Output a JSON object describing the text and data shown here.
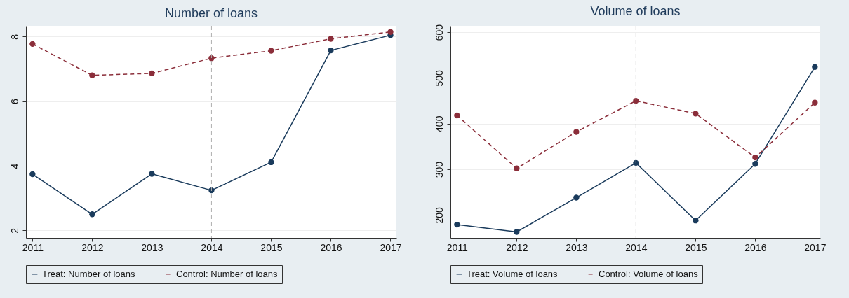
{
  "chart_data": [
    {
      "type": "line",
      "title": "Number of loans",
      "x": [
        2011,
        2012,
        2013,
        2014,
        2015,
        2016,
        2017
      ],
      "xlim": [
        2010.89,
        2017.1
      ],
      "xticks": [
        2011,
        2012,
        2013,
        2014,
        2015,
        2016,
        2017
      ],
      "ylim": [
        1.77,
        8.33
      ],
      "yticks": [
        2,
        4,
        6,
        8
      ],
      "grid": "y",
      "legend": "bottom",
      "marker": "circle",
      "ref_lines": [
        {
          "axis": "x",
          "value": 2014,
          "color": "#b0b0b0",
          "line_style": "dashed"
        }
      ],
      "series": [
        {
          "name": "Treat: Number of loans",
          "color": "#1a3b5c",
          "line_style": "solid",
          "values": [
            3.74,
            2.5,
            3.75,
            3.24,
            4.11,
            7.57,
            8.04
          ]
        },
        {
          "name": "Control: Number of loans",
          "color": "#8b2e3a",
          "line_style": "dashed",
          "values": [
            7.77,
            6.8,
            6.86,
            7.33,
            7.56,
            7.93,
            8.14
          ]
        }
      ]
    },
    {
      "type": "line",
      "title": "Volume of loans",
      "x": [
        2011,
        2012,
        2013,
        2014,
        2015,
        2016,
        2017
      ],
      "xlim": [
        2010.89,
        2017.09
      ],
      "xticks": [
        2011,
        2012,
        2013,
        2014,
        2015,
        2016,
        2017
      ],
      "ylim": [
        150,
        614
      ],
      "yticks": [
        200,
        300,
        400,
        500,
        600
      ],
      "grid": "y",
      "legend": "bottom",
      "marker": "circle",
      "ref_lines": [
        {
          "axis": "x",
          "value": 2014,
          "color": "#b0b0b0",
          "line_style": "dashed"
        }
      ],
      "series": [
        {
          "name": "Treat: Volume of loans",
          "color": "#1a3b5c",
          "line_style": "solid",
          "values": [
            179,
            163,
            238,
            314,
            188,
            312,
            524
          ]
        },
        {
          "name": "Control: Volume of loans",
          "color": "#8b2e3a",
          "line_style": "dashed",
          "values": [
            418,
            302,
            382,
            450,
            422,
            326,
            446
          ]
        }
      ]
    }
  ]
}
